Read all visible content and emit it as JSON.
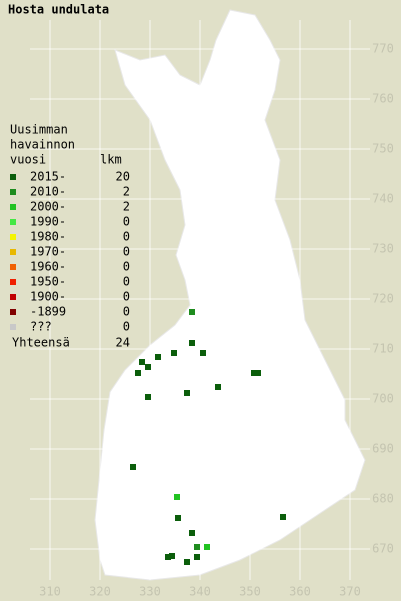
{
  "title": "Hosta undulata",
  "legend": {
    "heading": [
      "Uusimman",
      "havainnon",
      "vuosi"
    ],
    "count_heading": "lkm",
    "items": [
      {
        "label": "2015-",
        "count": 20,
        "color": "#0b5e0b",
        "points": [
          [
            328.4,
            707.4
          ],
          [
            329.6,
            706.4
          ],
          [
            327.6,
            705.2
          ],
          [
            331.6,
            708.4
          ],
          [
            334.8,
            709.2
          ],
          [
            338.4,
            711.2
          ],
          [
            340.6,
            709.2
          ],
          [
            329.6,
            700.4
          ],
          [
            337.4,
            701.2
          ],
          [
            343.6,
            702.4
          ],
          [
            350.8,
            705.2
          ],
          [
            351.6,
            705.2
          ],
          [
            326.6,
            686.4
          ],
          [
            335.6,
            676.2
          ],
          [
            338.4,
            673.2
          ],
          [
            356.6,
            676.4
          ],
          [
            333.6,
            668.4
          ],
          [
            334.4,
            668.6
          ],
          [
            337.4,
            667.4
          ],
          [
            339.4,
            668.4
          ]
        ]
      },
      {
        "label": "2010-",
        "count": 2,
        "color": "#1e8c1e",
        "points": [
          [
            338.4,
            717.4
          ],
          [
            339.4,
            670.4
          ]
        ]
      },
      {
        "label": "2000-",
        "count": 2,
        "color": "#22c322",
        "points": [
          [
            335.4,
            680.4
          ],
          [
            341.4,
            670.4
          ]
        ]
      },
      {
        "label": "1990-",
        "count": 0,
        "color": "#44e844",
        "points": []
      },
      {
        "label": "1980-",
        "count": 0,
        "color": "#f4f400",
        "points": []
      },
      {
        "label": "1970-",
        "count": 0,
        "color": "#e8b800",
        "points": []
      },
      {
        "label": "1960-",
        "count": 0,
        "color": "#f06000",
        "points": []
      },
      {
        "label": "1950-",
        "count": 0,
        "color": "#f02000",
        "points": []
      },
      {
        "label": "1900-",
        "count": 0,
        "color": "#c00000",
        "points": []
      },
      {
        "label": "-1899",
        "count": 0,
        "color": "#800000",
        "points": []
      },
      {
        "label": "???",
        "count": 0,
        "color": "#c8c8c8",
        "points": []
      }
    ],
    "total_label": "Yhteensä",
    "total": 24
  },
  "xticks": [
    310,
    320,
    330,
    340,
    350,
    360,
    370
  ],
  "yticks": [
    670,
    680,
    690,
    700,
    710,
    720,
    730,
    740,
    750,
    760,
    770
  ]
}
